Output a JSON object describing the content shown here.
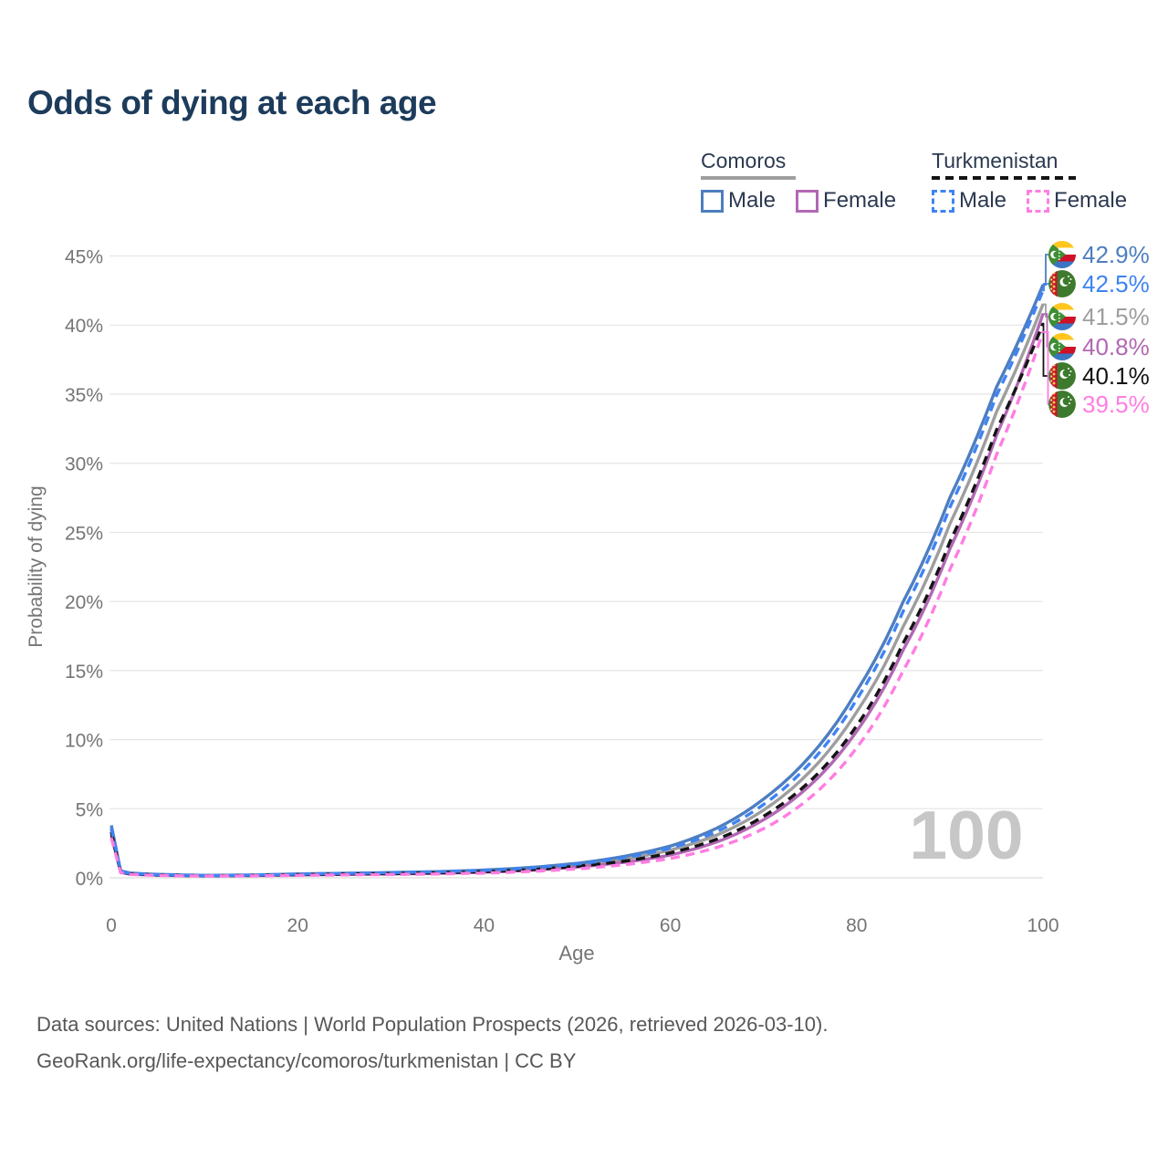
{
  "title": "Odds of dying at each age",
  "watermark": "100",
  "legend": {
    "comoros": {
      "label": "Comoros",
      "male_label": "Male",
      "female_label": "Female"
    },
    "turkmenistan": {
      "label": "Turkmenistan",
      "male_label": "Male",
      "female_label": "Female"
    }
  },
  "colors": {
    "comoros_male": "#4d7ec0",
    "comoros_female": "#b268b4",
    "comoros_all": "#9e9e9e",
    "turkmenistan_male": "#3f83f2",
    "turkmenistan_female": "#ff7de2",
    "turkmenistan_all": "#141414",
    "title_text": "#1d3c5c",
    "legend_text": "#2b3950",
    "axis_text": "#757575",
    "gridline": "#e7e7e7",
    "zero_line": "#dcdcdc",
    "watermark": "#c7c7c7",
    "footer_text": "#575757"
  },
  "axes": {
    "x_label": "Age",
    "y_label": "Probability of dying",
    "x_ticks": [
      "0",
      "20",
      "40",
      "60",
      "80",
      "100"
    ],
    "y_ticks": [
      "0%",
      "5%",
      "10%",
      "15%",
      "20%",
      "25%",
      "30%",
      "35%",
      "40%",
      "45%"
    ]
  },
  "chart_data": {
    "type": "line",
    "title": "Odds of dying at each age",
    "xlabel": "Age",
    "ylabel": "Probability of dying",
    "xlim": [
      0,
      100
    ],
    "ylim_percent": [
      0,
      45
    ],
    "x_ticks": [
      0,
      20,
      40,
      60,
      80,
      100
    ],
    "y_ticks_percent": [
      0,
      5,
      10,
      15,
      20,
      25,
      30,
      35,
      40,
      45
    ],
    "grid": true,
    "legend_position": "top-right",
    "ages": [
      0,
      1,
      2,
      5,
      10,
      15,
      20,
      25,
      30,
      35,
      40,
      45,
      50,
      55,
      60,
      65,
      70,
      75,
      80,
      85,
      90,
      95,
      100
    ],
    "series": [
      {
        "key": "comoros_male",
        "name": "Comoros Male",
        "style": "solid",
        "end_value_percent": 42.9,
        "values_percent": [
          3.8,
          0.5,
          0.35,
          0.25,
          0.18,
          0.2,
          0.28,
          0.33,
          0.38,
          0.45,
          0.56,
          0.75,
          1.05,
          1.55,
          2.3,
          3.6,
          5.7,
          8.8,
          13.5,
          20.0,
          27.5,
          35.5,
          42.9
        ]
      },
      {
        "key": "turkmenistan_male",
        "name": "Turkmenistan Male",
        "style": "dashed",
        "end_value_percent": 42.5,
        "values_percent": [
          3.6,
          0.46,
          0.32,
          0.22,
          0.16,
          0.19,
          0.27,
          0.32,
          0.37,
          0.44,
          0.54,
          0.72,
          1.0,
          1.45,
          2.15,
          3.35,
          5.3,
          8.3,
          12.9,
          19.3,
          26.8,
          34.9,
          42.5
        ]
      },
      {
        "key": "comoros_all",
        "name": "Comoros Both sexes",
        "style": "solid",
        "end_value_percent": 41.5,
        "values_percent": [
          3.5,
          0.45,
          0.31,
          0.22,
          0.16,
          0.18,
          0.25,
          0.29,
          0.33,
          0.39,
          0.48,
          0.65,
          0.92,
          1.35,
          2.0,
          3.1,
          4.9,
          7.7,
          12.0,
          18.2,
          25.6,
          33.7,
          41.5
        ]
      },
      {
        "key": "comoros_female",
        "name": "Comoros Female",
        "style": "solid",
        "end_value_percent": 40.8,
        "values_percent": [
          3.1,
          0.4,
          0.27,
          0.19,
          0.14,
          0.16,
          0.21,
          0.25,
          0.28,
          0.33,
          0.41,
          0.55,
          0.78,
          1.12,
          1.65,
          2.6,
          4.2,
          6.7,
          10.6,
          16.5,
          23.8,
          32.0,
          40.8
        ]
      },
      {
        "key": "turkmenistan_all",
        "name": "Turkmenistan Both sexes",
        "style": "dashed",
        "end_value_percent": 40.1,
        "values_percent": [
          3.3,
          0.42,
          0.29,
          0.2,
          0.15,
          0.17,
          0.23,
          0.27,
          0.31,
          0.36,
          0.44,
          0.59,
          0.84,
          1.2,
          1.8,
          2.8,
          4.45,
          7.0,
          11.0,
          17.0,
          24.3,
          32.4,
          40.1
        ]
      },
      {
        "key": "turkmenistan_female",
        "name": "Turkmenistan Female",
        "style": "dashed",
        "end_value_percent": 39.5,
        "values_percent": [
          2.9,
          0.37,
          0.25,
          0.17,
          0.13,
          0.14,
          0.18,
          0.21,
          0.24,
          0.28,
          0.34,
          0.46,
          0.65,
          0.95,
          1.4,
          2.2,
          3.55,
          5.8,
          9.4,
          15.0,
          22.3,
          30.6,
          39.5
        ]
      }
    ]
  },
  "end_labels": [
    {
      "text": "42.9%",
      "flag": "comoros",
      "series": "comoros_male"
    },
    {
      "text": "42.5%",
      "flag": "turkmenistan",
      "series": "turkmenistan_male"
    },
    {
      "text": "41.5%",
      "flag": "comoros",
      "series": "comoros_all"
    },
    {
      "text": "40.8%",
      "flag": "comoros",
      "series": "comoros_female"
    },
    {
      "text": "40.1%",
      "flag": "turkmenistan",
      "series": "turkmenistan_all"
    },
    {
      "text": "39.5%",
      "flag": "turkmenistan",
      "series": "turkmenistan_female"
    }
  ],
  "footer": {
    "line1": "Data sources: United Nations | World Population Prospects (2026, retrieved 2026-03-10).",
    "line2": "GeoRank.org/life-expectancy/comoros/turkmenistan | CC BY"
  }
}
